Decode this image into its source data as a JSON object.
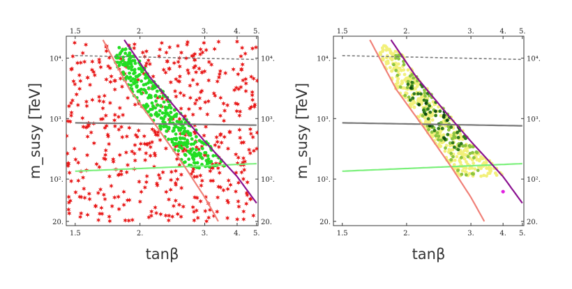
{
  "chart_data": [
    {
      "type": "scatter",
      "panel": "left",
      "xlabel": "tanβ",
      "ylabel": "m_susy [TeV]",
      "xscale": "reciprocal",
      "yscale": "log",
      "xlim": [
        1.45,
        5.1
      ],
      "ylim": [
        17,
        23000
      ],
      "xticks": [
        "1.5",
        "2.",
        "3.",
        "4.",
        "5."
      ],
      "yticks": [
        {
          "value": 20,
          "label": "20."
        },
        {
          "value": 100,
          "label": "10²."
        },
        {
          "value": 1000,
          "label": "10³."
        },
        {
          "value": 10000,
          "label": "10⁴."
        }
      ],
      "colors": {
        "excluded": "#e81818",
        "allowed": "#22dd22",
        "upper_dashed": "#777777",
        "gray_line": "#777777",
        "green_line": "#7af07a",
        "salmon_curve": "#f08078",
        "purple_curve": "#8a1090"
      },
      "point_groups": [
        {
          "name": "",
          "marker": "star",
          "color": "#e81818",
          "region": "full",
          "count": 520
        },
        {
          "name": "",
          "marker": "dot",
          "color": "#22dd22",
          "region": "between-curves",
          "count": 360
        }
      ],
      "lines": [
        {
          "style": "dashed",
          "color": "#777777",
          "x": [
            1.5,
            5.0
          ],
          "y": [
            11000,
            9500
          ]
        },
        {
          "style": "solid",
          "color": "#777777",
          "x": [
            1.5,
            5.0
          ],
          "y": [
            850,
            780
          ]
        },
        {
          "style": "solid",
          "color": "#7af07a",
          "x": [
            1.5,
            5.0
          ],
          "y": [
            135,
            180
          ]
        },
        {
          "style": "solid",
          "color": "#f08078",
          "x": [
            1.68,
            1.9,
            2.2,
            2.6,
            3.0,
            3.35
          ],
          "y": [
            20000,
            3000,
            700,
            160,
            50,
            20
          ]
        },
        {
          "style": "solid",
          "color": "#8a1090",
          "x": [
            1.85,
            2.1,
            2.5,
            3.0,
            4.0,
            5.0
          ],
          "y": [
            20000,
            5000,
            1300,
            420,
            110,
            40
          ]
        }
      ]
    },
    {
      "type": "scatter",
      "panel": "right",
      "xlabel": "tanβ",
      "ylabel": "m_susy [TeV]",
      "xscale": "reciprocal",
      "yscale": "log",
      "xlim": [
        1.45,
        5.1
      ],
      "ylim": [
        17,
        23000
      ],
      "xticks": [
        "1.5",
        "2.",
        "3.",
        "4.",
        "5."
      ],
      "yticks": [
        {
          "value": 20,
          "label": "20."
        },
        {
          "value": 100,
          "label": "10²."
        },
        {
          "value": 1000,
          "label": "10³."
        },
        {
          "value": 10000,
          "label": "10⁴."
        }
      ],
      "colors": {
        "yellow": "#f2f07a",
        "light_green": "#8cc440",
        "dark_green": "#2f7a1c",
        "darkest_green": "#0e4a10",
        "magenta": "#e020e0"
      },
      "point_groups": [
        {
          "name": "",
          "marker": "dot",
          "color": "#f2f07a",
          "region": "between-curves",
          "count": 430
        },
        {
          "name": "",
          "marker": "dot",
          "color": "#8cc440",
          "region": "band",
          "count": 90
        },
        {
          "name": "",
          "marker": "dot",
          "color": "#2f7a1c",
          "region": "band-core",
          "count": 45
        },
        {
          "name": "",
          "marker": "dot",
          "color": "#0e4a10",
          "region": "band-core",
          "count": 12
        }
      ],
      "special_points": [
        {
          "x": 4.0,
          "y": 62,
          "color": "#e020e0"
        }
      ],
      "lines": [
        {
          "style": "dashed",
          "color": "#777777",
          "x": [
            1.5,
            5.0
          ],
          "y": [
            11000,
            9500
          ]
        },
        {
          "style": "solid",
          "color": "#777777",
          "x": [
            1.5,
            5.0
          ],
          "y": [
            850,
            760
          ]
        },
        {
          "style": "solid",
          "color": "#7af07a",
          "x": [
            1.5,
            5.0
          ],
          "y": [
            135,
            180
          ]
        },
        {
          "style": "solid",
          "color": "#f08078",
          "x": [
            1.68,
            1.9,
            2.2,
            2.6,
            3.0,
            3.35
          ],
          "y": [
            20000,
            3000,
            700,
            160,
            50,
            20
          ]
        },
        {
          "style": "solid",
          "color": "#8a1090",
          "x": [
            1.85,
            2.1,
            2.5,
            3.0,
            4.0,
            5.0
          ],
          "y": [
            20000,
            5000,
            1300,
            420,
            110,
            40
          ]
        }
      ]
    }
  ]
}
